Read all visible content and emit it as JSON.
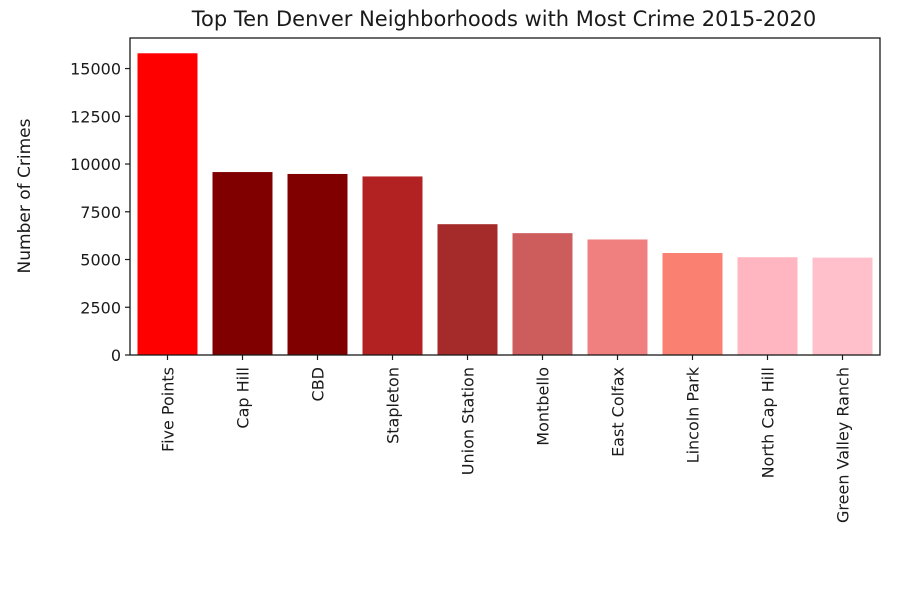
{
  "chart_data": {
    "type": "bar",
    "title": "Top Ten Denver Neighborhoods with Most Crime 2015-2020",
    "xlabel": "",
    "ylabel": "Number of Crimes",
    "ylim": [
      0,
      16600
    ],
    "yticks": [
      0,
      2500,
      5000,
      7500,
      10000,
      12500,
      15000
    ],
    "ytick_labels": [
      "0",
      "2500",
      "5000",
      "7500",
      "10000",
      "12500",
      "15000"
    ],
    "grid": false,
    "categories": [
      "Five Points",
      "Cap Hill",
      "CBD",
      "Stapleton",
      "Union Station",
      "Montbello",
      "East Colfax",
      "Lincoln Park",
      "North Cap Hill",
      "Green Valley Ranch"
    ],
    "values": [
      15800,
      9580,
      9480,
      9350,
      6850,
      6380,
      6050,
      5340,
      5120,
      5100
    ],
    "colors": [
      "#ff0000",
      "#800000",
      "#800000",
      "#b22222",
      "#a52a2a",
      "#cd5c5c",
      "#f08080",
      "#fa8072",
      "#ffb6c1",
      "#ffc0cb"
    ]
  }
}
